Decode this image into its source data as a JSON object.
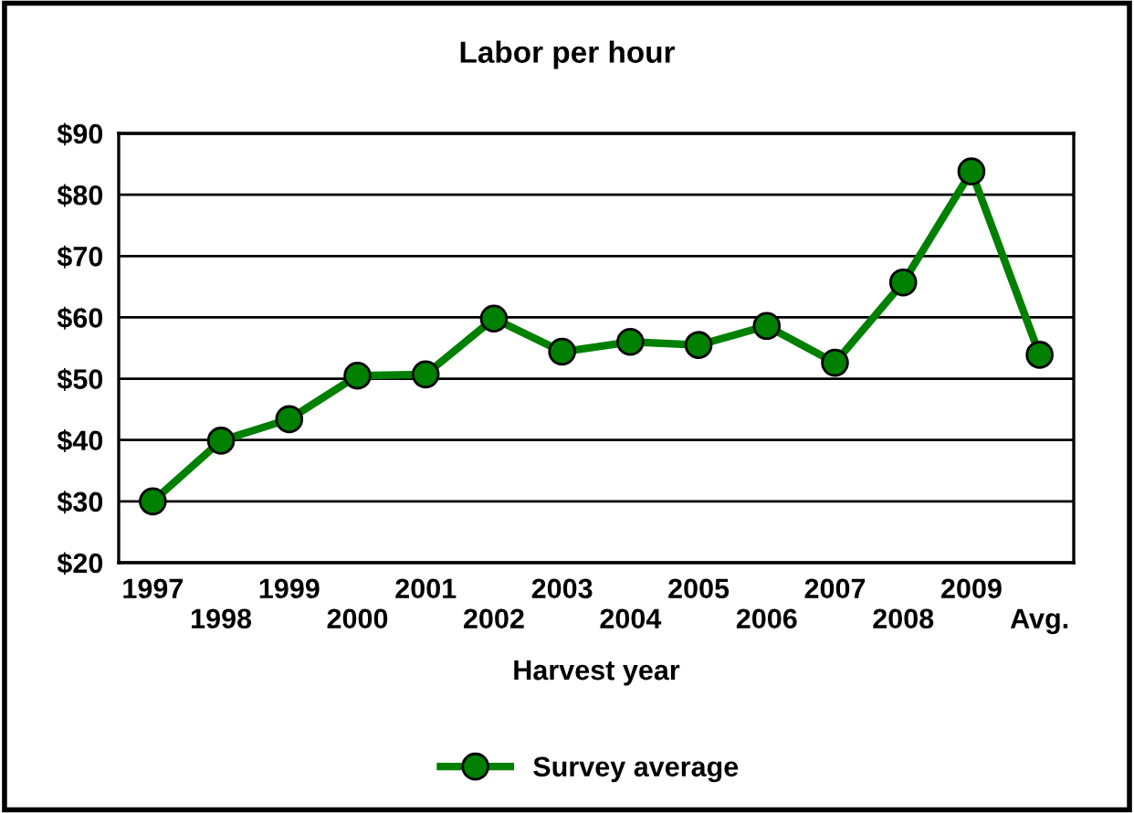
{
  "chart_data": {
    "type": "line",
    "title": "Labor per hour",
    "xlabel": "Harvest year",
    "categories": [
      "1997",
      "1998",
      "1999",
      "2000",
      "2001",
      "2002",
      "2003",
      "2004",
      "2005",
      "2006",
      "2007",
      "2008",
      "2009",
      "Avg."
    ],
    "series": [
      {
        "name": "Survey average",
        "color": "#008000",
        "values": [
          30.0,
          39.9,
          43.4,
          50.5,
          50.7,
          59.8,
          54.4,
          56.0,
          55.5,
          58.6,
          52.6,
          65.7,
          83.8,
          53.9
        ]
      }
    ],
    "ylim": [
      20,
      90
    ],
    "yticks": [
      {
        "value": 20,
        "label": "$20"
      },
      {
        "value": 30,
        "label": "$30"
      },
      {
        "value": 40,
        "label": "$40"
      },
      {
        "value": 50,
        "label": "$50"
      },
      {
        "value": 60,
        "label": "$60"
      },
      {
        "value": 70,
        "label": "$70"
      },
      {
        "value": 80,
        "label": "$80"
      },
      {
        "value": 90,
        "label": "$90"
      }
    ],
    "grid": "y",
    "legend": "bottom",
    "marker": "circle",
    "line_style": "solid"
  }
}
